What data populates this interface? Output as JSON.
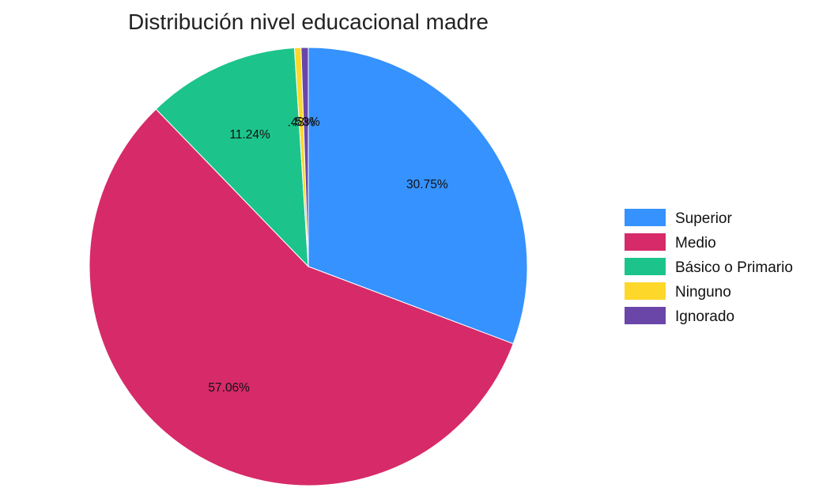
{
  "chart_data": {
    "type": "pie",
    "title": "Distribución nivel educacional madre",
    "slices": [
      {
        "label": "Superior",
        "value": 30.75,
        "display": "30.75%",
        "color": "#3592fe"
      },
      {
        "label": "Medio",
        "value": 57.06,
        "display": "57.06%",
        "color": "#d72a68"
      },
      {
        "label": "Básico o Primario",
        "value": 11.24,
        "display": "11.24%",
        "color": "#1cc48b"
      },
      {
        "label": "Ninguno",
        "value": 0.48,
        "display": ".48%",
        "color": "#fdd72a"
      },
      {
        "label": "Ignorado",
        "value": 0.53,
        "display": ".53%",
        "color": "#6946a8"
      }
    ],
    "direction": "clockwise",
    "start": "top",
    "legend_position": "right"
  }
}
